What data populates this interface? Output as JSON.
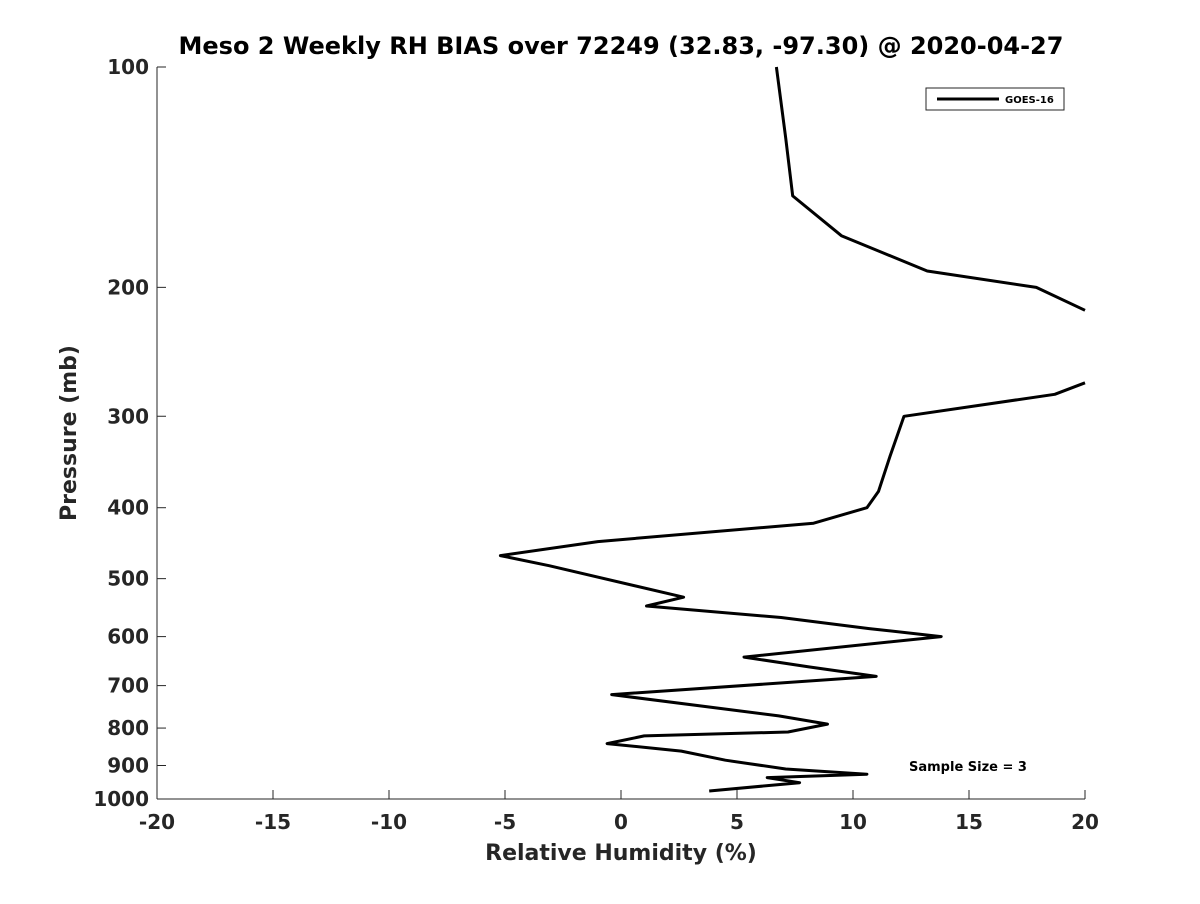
{
  "chart_data": {
    "type": "line",
    "title": "Meso 2 Weekly RH BIAS over 72249 (32.83, -97.30) @ 2020-04-27",
    "xlabel": "Relative Humidity (%)",
    "ylabel": "Pressure (mb)",
    "xlim": [
      -20,
      20
    ],
    "ylim": [
      100,
      1000
    ],
    "yscale": "log",
    "yreversed": true,
    "grid": false,
    "legend_position": "top-right",
    "xticks": [
      -20,
      -15,
      -10,
      -5,
      0,
      5,
      10,
      15,
      20
    ],
    "xtick_labels": [
      "-20",
      "-15",
      "-10",
      "-5",
      "0",
      "5",
      "10",
      "15",
      "20"
    ],
    "yticks": [
      100,
      200,
      300,
      400,
      500,
      600,
      700,
      800,
      900,
      1000
    ],
    "ytick_labels": [
      "100",
      "200",
      "300",
      "400",
      "500",
      "600",
      "700",
      "800",
      "900",
      "1000"
    ],
    "annotation": "Sample Size = 3",
    "series": [
      {
        "name": "GOES-16",
        "color": "#000000",
        "segments": [
          [
            {
              "x": 6.7,
              "y": 100
            },
            {
              "x": 7.1,
              "y": 125
            },
            {
              "x": 7.4,
              "y": 150
            },
            {
              "x": 9.5,
              "y": 170
            },
            {
              "x": 13.2,
              "y": 190
            },
            {
              "x": 17.9,
              "y": 200
            },
            {
              "x": 20.0,
              "y": 215
            }
          ],
          [
            {
              "x": 20.0,
              "y": 270
            },
            {
              "x": 18.7,
              "y": 280
            },
            {
              "x": 12.2,
              "y": 300
            },
            {
              "x": 11.6,
              "y": 340
            },
            {
              "x": 11.1,
              "y": 380
            },
            {
              "x": 10.6,
              "y": 400
            },
            {
              "x": 8.3,
              "y": 420
            },
            {
              "x": -1.0,
              "y": 445
            },
            {
              "x": -5.2,
              "y": 465
            },
            {
              "x": -3.1,
              "y": 480
            },
            {
              "x": 2.7,
              "y": 530
            },
            {
              "x": 1.1,
              "y": 545
            },
            {
              "x": 6.9,
              "y": 565
            },
            {
              "x": 10.7,
              "y": 585
            },
            {
              "x": 13.8,
              "y": 600
            },
            {
              "x": 5.3,
              "y": 640
            },
            {
              "x": 8.1,
              "y": 660
            },
            {
              "x": 11.0,
              "y": 680
            },
            {
              "x": -0.4,
              "y": 720
            },
            {
              "x": 6.8,
              "y": 770
            },
            {
              "x": 8.9,
              "y": 790
            },
            {
              "x": 7.2,
              "y": 810
            },
            {
              "x": 1.0,
              "y": 820
            },
            {
              "x": -0.6,
              "y": 840
            },
            {
              "x": 2.6,
              "y": 860
            },
            {
              "x": 4.5,
              "y": 885
            },
            {
              "x": 7.1,
              "y": 910
            },
            {
              "x": 10.6,
              "y": 925
            },
            {
              "x": 6.3,
              "y": 935
            },
            {
              "x": 7.7,
              "y": 950
            },
            {
              "x": 3.8,
              "y": 975
            }
          ]
        ]
      }
    ]
  }
}
